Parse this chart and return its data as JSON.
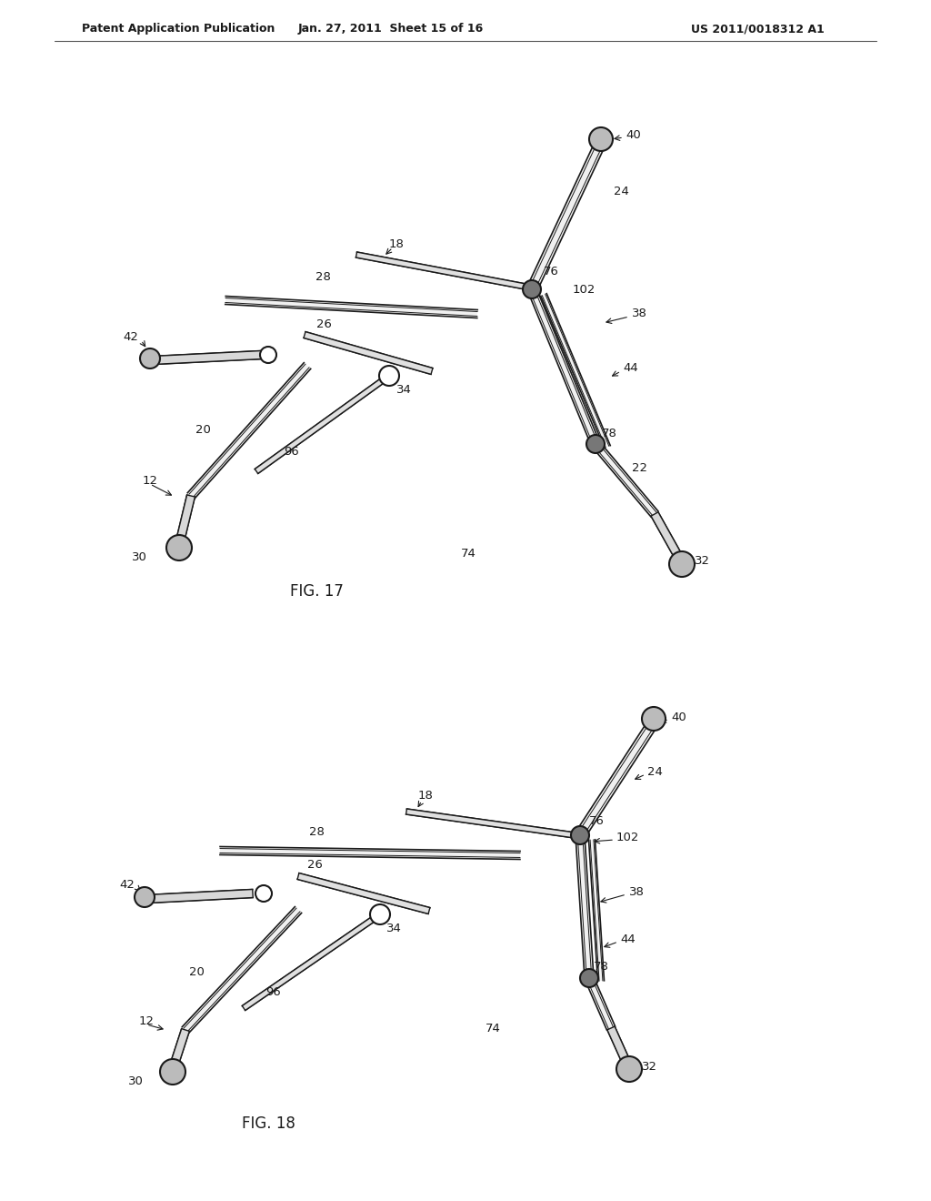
{
  "header_left": "Patent Application Publication",
  "header_mid": "Jan. 27, 2011  Sheet 15 of 16",
  "header_right": "US 2011/0018312 A1",
  "fig17_label": "FIG. 17",
  "fig18_label": "FIG. 18",
  "bg_color": "#ffffff",
  "line_color": "#1a1a1a",
  "line_width": 1.5,
  "thin_line": 0.8,
  "header_fontsize": 9,
  "label_fontsize": 10,
  "fig_label_fontsize": 12,
  "ref_fontsize": 9.5
}
